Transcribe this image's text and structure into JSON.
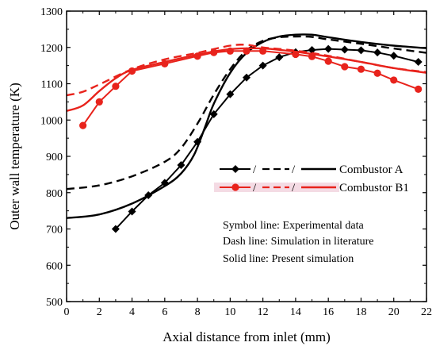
{
  "chart_data": {
    "type": "line",
    "xlabel": "Axial distance from inlet (mm)",
    "ylabel": "Outer wall temperature (K)",
    "xlim": [
      0,
      22
    ],
    "ylim": [
      500,
      1300
    ],
    "x_ticks": [
      0,
      2,
      4,
      6,
      8,
      10,
      12,
      14,
      16,
      18,
      20,
      22
    ],
    "y_ticks": [
      500,
      600,
      700,
      800,
      900,
      1000,
      1100,
      1200,
      1300
    ],
    "grid": false,
    "legend_position": "right-middle",
    "legend": [
      {
        "label": "Combustor A",
        "color": "#000000",
        "separator": "/"
      },
      {
        "label": "Combustor B1",
        "color": "#e8231c",
        "separator": "/"
      }
    ],
    "notes": [
      "Symbol line: Experimental data",
      "Dash line: Simulation in literature",
      "Solid line: Present simulation"
    ],
    "series": [
      {
        "group": "Combustor A",
        "style": "symbol",
        "marker": "diamond",
        "color": "#000000",
        "points": [
          [
            3,
            700
          ],
          [
            4,
            748
          ],
          [
            5,
            793
          ],
          [
            6,
            827
          ],
          [
            7,
            876
          ],
          [
            8,
            940
          ],
          [
            9,
            1016
          ],
          [
            10,
            1071
          ],
          [
            11,
            1117
          ],
          [
            12,
            1150
          ],
          [
            13,
            1173
          ],
          [
            14,
            1187
          ],
          [
            15,
            1193
          ],
          [
            16,
            1196
          ],
          [
            17,
            1194
          ],
          [
            18,
            1192
          ],
          [
            19,
            1186
          ],
          [
            20,
            1177
          ],
          [
            21.5,
            1160
          ]
        ]
      },
      {
        "group": "Combustor A",
        "style": "dash",
        "color": "#000000",
        "points": [
          [
            0,
            810
          ],
          [
            2,
            820
          ],
          [
            4,
            845
          ],
          [
            6,
            885
          ],
          [
            7,
            923
          ],
          [
            8,
            990
          ],
          [
            9,
            1070
          ],
          [
            10,
            1140
          ],
          [
            11,
            1192
          ],
          [
            12,
            1218
          ],
          [
            13,
            1228
          ],
          [
            14,
            1230
          ],
          [
            15,
            1229
          ],
          [
            16,
            1222
          ],
          [
            18,
            1210
          ],
          [
            20,
            1197
          ],
          [
            22,
            1185
          ]
        ]
      },
      {
        "group": "Combustor A",
        "style": "solid",
        "color": "#000000",
        "points": [
          [
            0,
            730
          ],
          [
            2,
            740
          ],
          [
            4,
            770
          ],
          [
            6,
            818
          ],
          [
            7,
            853
          ],
          [
            7.8,
            905
          ],
          [
            8.5,
            985
          ],
          [
            9,
            1045
          ],
          [
            10,
            1130
          ],
          [
            11,
            1185
          ],
          [
            12,
            1215
          ],
          [
            13,
            1230
          ],
          [
            14,
            1235
          ],
          [
            15,
            1235
          ],
          [
            16,
            1228
          ],
          [
            18,
            1215
          ],
          [
            20,
            1205
          ],
          [
            22,
            1198
          ]
        ]
      },
      {
        "group": "Combustor B1",
        "style": "symbol",
        "marker": "circle",
        "color": "#e8231c",
        "points": [
          [
            1,
            985
          ],
          [
            2,
            1050
          ],
          [
            3,
            1093
          ],
          [
            4,
            1135
          ],
          [
            6,
            1155
          ],
          [
            8,
            1176
          ],
          [
            9,
            1186
          ],
          [
            10,
            1190
          ],
          [
            11,
            1190
          ],
          [
            12,
            1190
          ],
          [
            14,
            1181
          ],
          [
            15,
            1175
          ],
          [
            16,
            1162
          ],
          [
            17,
            1147
          ],
          [
            18,
            1140
          ],
          [
            19,
            1129
          ],
          [
            20,
            1110
          ],
          [
            21.5,
            1085
          ]
        ]
      },
      {
        "group": "Combustor B1",
        "style": "dash",
        "color": "#e8231c",
        "points": [
          [
            0,
            1068
          ],
          [
            1,
            1078
          ],
          [
            2,
            1098
          ],
          [
            4,
            1140
          ],
          [
            6,
            1167
          ],
          [
            8,
            1185
          ],
          [
            10,
            1205
          ],
          [
            11,
            1207
          ],
          [
            12,
            1200
          ],
          [
            14,
            1191
          ],
          [
            16,
            1177
          ],
          [
            18,
            1160
          ],
          [
            20,
            1143
          ],
          [
            22,
            1132
          ]
        ]
      },
      {
        "group": "Combustor B1",
        "style": "solid",
        "color": "#e8231c",
        "points": [
          [
            0,
            1025
          ],
          [
            1,
            1040
          ],
          [
            2,
            1080
          ],
          [
            3,
            1115
          ],
          [
            4,
            1138
          ],
          [
            6,
            1160
          ],
          [
            8,
            1180
          ],
          [
            10,
            1195
          ],
          [
            12,
            1197
          ],
          [
            14,
            1188
          ],
          [
            16,
            1175
          ],
          [
            18,
            1160
          ],
          [
            20,
            1143
          ],
          [
            22,
            1130
          ]
        ]
      }
    ]
  }
}
